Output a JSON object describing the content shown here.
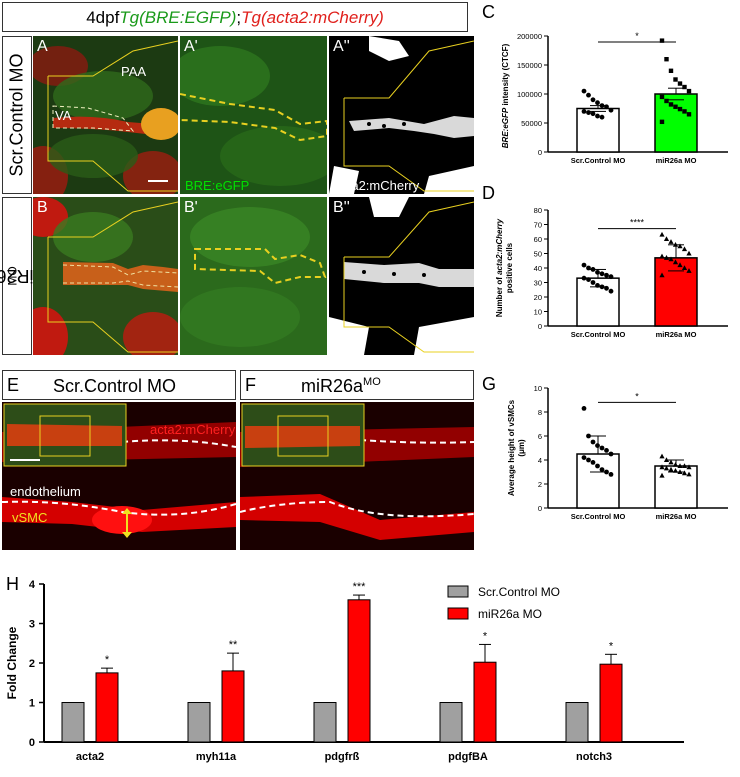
{
  "figure_title": {
    "prefix": "4dpf",
    "green_part": "Tg(BRE:EGFP)",
    "sep": ";",
    "red_part": "Tg(acta2:mCherry)"
  },
  "row_labels": {
    "top": "Scr.Control MO",
    "bottom_base": "miR26a",
    "bottom_sup": "MO"
  },
  "panels": {
    "A": "A",
    "A1": "A'",
    "A2": "A''",
    "B": "B",
    "B1": "B'",
    "B2": "B''",
    "C": "C",
    "D": "D",
    "E": "E",
    "F": "F",
    "G": "G",
    "H": "H"
  },
  "micro_labels": {
    "va": "VA",
    "paa": "PAA",
    "bre": "BRE:eGFP",
    "acta2_white": "acta2:mCherry",
    "acta2_red": "acta2:mCherry",
    "endothelium": "endothelium",
    "vsmc": "vSMC"
  },
  "panel_headers": {
    "E": "Scr.Control MO",
    "F_base": "miR26a",
    "F_sup": "MO"
  },
  "colors": {
    "green": "#00e000",
    "red": "#ff0000",
    "gray": "#a0a0a0",
    "white": "#ffffff",
    "yellow": "#e8d020"
  },
  "chart_data": [
    {
      "id": "C",
      "type": "bar",
      "categories": [
        "Scr.Control MO",
        "miR26a MO"
      ],
      "values": [
        75000,
        100000
      ],
      "errors": [
        5000,
        10000
      ],
      "ylabel_italic": "BRE:eGFP",
      "ylabel_rest": " intensity (CTCF)",
      "ylim": [
        0,
        200000
      ],
      "yticks": [
        "0",
        "50000",
        "100000",
        "150000",
        "200000"
      ],
      "significance": "*",
      "bar_colors": [
        "#ffffff",
        "#00ff00"
      ],
      "points": [
        [
          105000,
          98000,
          90000,
          85000,
          80000,
          78000,
          72000,
          70000,
          68000,
          66000,
          62000,
          60000
        ],
        [
          192000,
          160000,
          140000,
          125000,
          118000,
          112000,
          105000,
          95000,
          88000,
          82000,
          78000,
          74000,
          70000,
          65000,
          52000
        ]
      ]
    },
    {
      "id": "D",
      "type": "bar",
      "categories": [
        "Scr.Control MO",
        "miR26a MO"
      ],
      "values": [
        33,
        47
      ],
      "errors": [
        6,
        9
      ],
      "ylabel_line1_pre": "Number of ",
      "ylabel_line1_italic": "acta2:mCherry",
      "ylabel_line2": "positive cells",
      "ylim": [
        0,
        80
      ],
      "yticks": [
        "0",
        "10",
        "20",
        "30",
        "40",
        "50",
        "60",
        "70",
        "80"
      ],
      "significance": "****",
      "bar_colors": [
        "#ffffff",
        "#ff0000"
      ],
      "points": [
        [
          42,
          40,
          39,
          37,
          36,
          35,
          34,
          33,
          32,
          30,
          28,
          27,
          26,
          24
        ],
        [
          63,
          60,
          58,
          56,
          55,
          53,
          50,
          48,
          47,
          46,
          44,
          42,
          40,
          38,
          35
        ]
      ]
    },
    {
      "id": "G",
      "type": "bar",
      "categories": [
        "Scr.Control MO",
        "miR26a MO"
      ],
      "values": [
        4.5,
        3.5
      ],
      "errors": [
        1.5,
        0.5
      ],
      "ylabel_line1": "Average height of vSMCs",
      "ylabel_line2": "(μm)",
      "ylim": [
        0,
        10
      ],
      "yticks": [
        "0",
        "2",
        "4",
        "6",
        "8",
        "10"
      ],
      "significance": "*",
      "bar_colors": [
        "#ffffff",
        "#ffffff"
      ],
      "points": [
        [
          8.3,
          6.0,
          5.5,
          5.2,
          5.0,
          4.8,
          4.5,
          4.2,
          4.0,
          3.8,
          3.5,
          3.2,
          3.0,
          2.8
        ],
        [
          4.3,
          4.0,
          3.8,
          3.6,
          3.5,
          3.5,
          3.4,
          3.4,
          3.3,
          3.2,
          3.1,
          3.0,
          2.9,
          2.8,
          2.7
        ]
      ]
    },
    {
      "id": "H",
      "type": "bar",
      "categories": [
        "acta2",
        "myh11a",
        "pdgfrß",
        "pdgfBA",
        "notch3"
      ],
      "series": [
        {
          "name": "Scr.Control MO",
          "values": [
            1,
            1,
            1,
            1,
            1
          ],
          "color": "#a0a0a0"
        },
        {
          "name": "miR26a MO",
          "values": [
            1.75,
            1.8,
            3.6,
            2.02,
            1.97
          ],
          "errors": [
            0.12,
            0.45,
            0.12,
            0.45,
            0.25
          ],
          "color": "#ff0000"
        }
      ],
      "significance": [
        "*",
        "**",
        "***",
        "*",
        "*"
      ],
      "ylabel": "Fold Change",
      "ylim": [
        0,
        4
      ],
      "yticks": [
        "0",
        "1",
        "2",
        "3",
        "4"
      ],
      "legend_position": "top-right"
    }
  ]
}
